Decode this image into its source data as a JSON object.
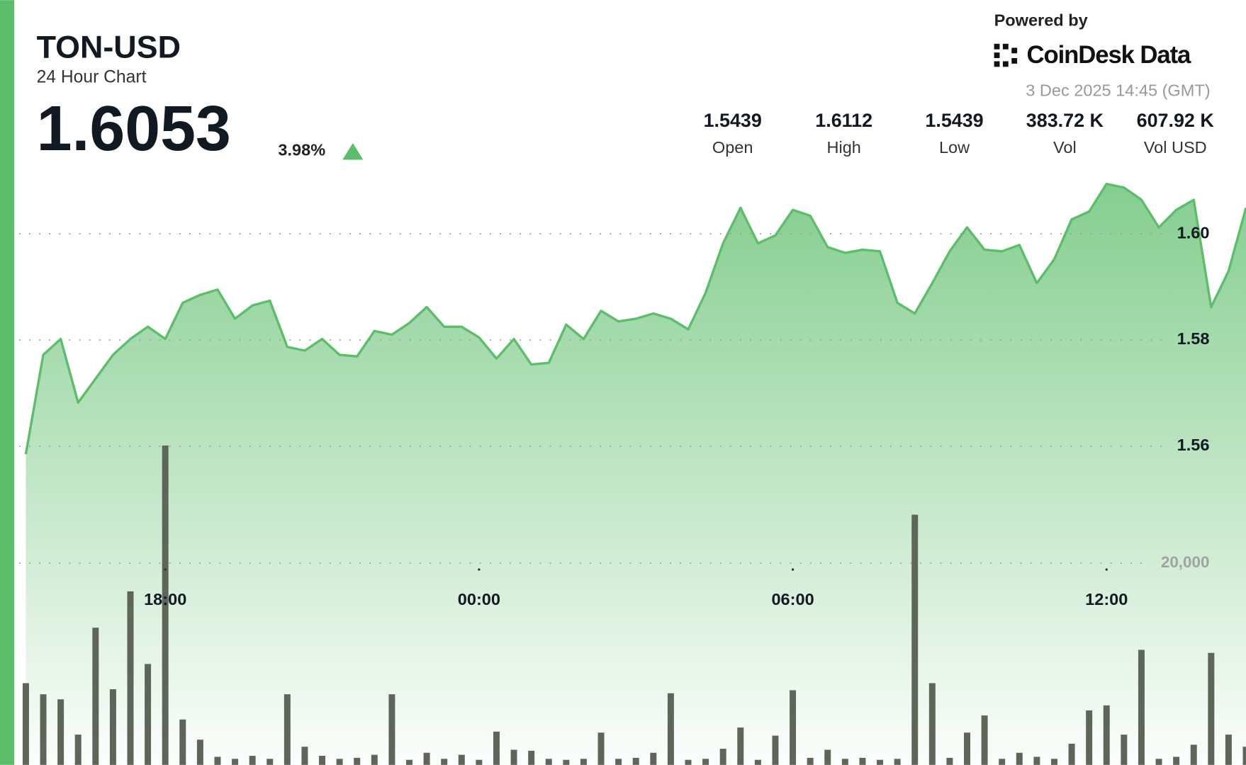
{
  "chart_data": {
    "type": "line",
    "title": "TON-USD",
    "subtitle": "24 Hour Chart",
    "price": "1.6053",
    "change": "3.98%",
    "powered_by": "Powered by",
    "brand": "CoinDesk Data",
    "timestamp": "3 Dec 2025 14:45 (GMT)",
    "stats": [
      {
        "value": "1.5439",
        "label": "Open"
      },
      {
        "value": "1.6112",
        "label": "High"
      },
      {
        "value": "1.5439",
        "label": "Low"
      },
      {
        "value": "383.72 K",
        "label": "Vol"
      },
      {
        "value": "607.92 K",
        "label": "Vol USD"
      }
    ],
    "x": [
      "15:20",
      "15:40",
      "16:00",
      "16:20",
      "16:40",
      "17:00",
      "17:20",
      "17:40",
      "18:00",
      "18:20",
      "18:40",
      "19:00",
      "19:20",
      "19:40",
      "20:00",
      "20:20",
      "20:40",
      "21:00",
      "21:20",
      "21:40",
      "22:00",
      "22:20",
      "22:40",
      "23:00",
      "23:20",
      "23:40",
      "00:00",
      "00:20",
      "00:40",
      "01:00",
      "01:20",
      "01:40",
      "02:00",
      "02:20",
      "02:40",
      "03:00",
      "03:20",
      "03:40",
      "04:00",
      "04:20",
      "04:40",
      "05:00",
      "05:20",
      "05:40",
      "06:00",
      "06:20",
      "06:40",
      "07:00",
      "07:20",
      "07:40",
      "08:00",
      "08:20",
      "08:40",
      "09:00",
      "09:20",
      "09:40",
      "10:00",
      "10:20",
      "10:40",
      "11:00",
      "11:20",
      "11:40",
      "12:00",
      "12:20",
      "12:40",
      "13:00",
      "13:20",
      "13:40",
      "14:00",
      "14:20",
      "14:40"
    ],
    "xticks": [
      "18:00",
      "00:00",
      "06:00",
      "12:00"
    ],
    "series": [
      {
        "color": "#5cbd6a",
        "values": [
          1.5585,
          1.5772,
          1.5802,
          1.5682,
          1.5727,
          1.5772,
          1.5802,
          1.5825,
          1.5802,
          1.587,
          1.5885,
          1.5895,
          1.584,
          1.5865,
          1.5874,
          1.5787,
          1.578,
          1.5802,
          1.5772,
          1.5769,
          1.5817,
          1.581,
          1.5832,
          1.5862,
          1.5825,
          1.5825,
          1.5805,
          1.5765,
          1.5802,
          1.5754,
          1.5757,
          1.5829,
          1.5802,
          1.5855,
          1.5835,
          1.584,
          1.585,
          1.584,
          1.582,
          1.5889,
          1.5982,
          1.6049,
          1.5982,
          1.5997,
          1.6045,
          1.6034,
          1.5975,
          1.5964,
          1.597,
          1.5967,
          1.587,
          1.585,
          1.5907,
          1.5967,
          1.6012,
          1.597,
          1.5967,
          1.5979,
          1.5907,
          1.5952,
          1.6027,
          1.6042,
          1.6094,
          1.6087,
          1.6064,
          1.6012,
          1.6045,
          1.6064,
          1.5862,
          1.593,
          1.6049
        ]
      },
      {
        "color": "#5d6659",
        "type": "bar",
        "axis": "y2",
        "values": [
          8100,
          7000,
          6500,
          3000,
          13600,
          7500,
          17200,
          10000,
          31650,
          4500,
          2500,
          800,
          600,
          900,
          600,
          7000,
          1800,
          900,
          600,
          700,
          1000,
          7000,
          500,
          1200,
          600,
          1000,
          500,
          3300,
          1500,
          1400,
          600,
          500,
          600,
          3200,
          600,
          700,
          1200,
          7100,
          500,
          600,
          1600,
          3700,
          500,
          2900,
          7400,
          700,
          1500,
          600,
          700,
          500,
          600,
          24800,
          8100,
          700,
          3200,
          4900,
          600,
          1200,
          800,
          600,
          2100,
          5400,
          5900,
          3000,
          11400,
          600,
          800,
          2000,
          11100,
          3000,
          1800
        ]
      }
    ],
    "ylim": [
      1.5,
      1.644
    ],
    "yticks": [
      1.56,
      1.58,
      {
        "value": 1.6,
        "label": "1.60"
      }
    ],
    "y2lim": [
      0,
      75800
    ],
    "y2ticks": [
      {
        "value": 20000,
        "label": "20,000"
      }
    ],
    "grid": true
  }
}
